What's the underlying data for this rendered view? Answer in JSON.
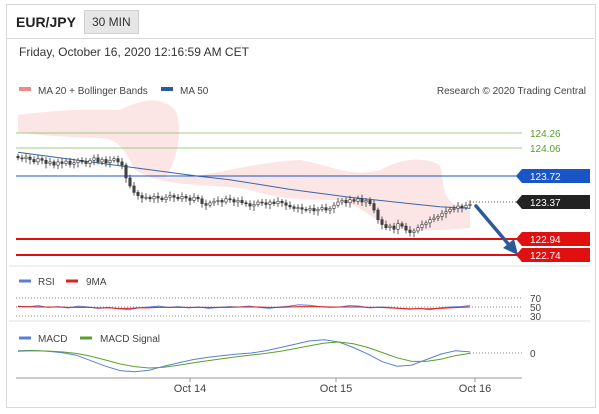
{
  "header": {
    "symbol": "EUR/JPY",
    "timeframe": "30 MIN"
  },
  "datetime": "Friday, October 16, 2020 12:16:59 AM CET",
  "copyright": "Research © 2020 Trading Central",
  "colors": {
    "bollinger": "#f07070",
    "ma50": "#2a5a9a",
    "resistance": "#6ab04c",
    "pivot": "#1a55c8",
    "support": "#e01010",
    "arrow": "#2a5a9a",
    "rsi": "#5b7fd6",
    "rsi9": "#e02020",
    "macd": "#5b7fd6",
    "macd_signal": "#5aa02c"
  },
  "icons": [
    "down-arrow-icon"
  ],
  "chart_data": [
    {
      "type": "line",
      "panel": "price",
      "legend": [
        "MA 20 + Bollinger Bands",
        "MA 50"
      ],
      "x_ticks": [
        "Oct 14",
        "Oct 15",
        "Oct 16"
      ],
      "ylim": [
        122.65,
        124.45
      ],
      "candles_close": [
        123.95,
        123.94,
        123.96,
        123.93,
        123.9,
        123.94,
        123.92,
        123.88,
        123.9,
        123.86,
        123.9,
        123.88,
        123.91,
        123.87,
        123.89,
        123.92,
        123.9,
        123.88,
        123.92,
        123.95,
        123.9,
        123.93,
        123.89,
        123.92,
        123.94,
        123.9,
        123.86,
        123.7,
        123.6,
        123.52,
        123.48,
        123.45,
        123.46,
        123.44,
        123.47,
        123.45,
        123.43,
        123.46,
        123.48,
        123.46,
        123.44,
        123.47,
        123.45,
        123.42,
        123.46,
        123.44,
        123.38,
        123.36,
        123.39,
        123.41,
        123.42,
        123.4,
        123.44,
        123.43,
        123.4,
        123.42,
        123.39,
        123.38,
        123.35,
        123.37,
        123.4,
        123.39,
        123.37,
        123.4,
        123.38,
        123.41,
        123.39,
        123.36,
        123.34,
        123.32,
        123.33,
        123.31,
        123.3,
        123.32,
        123.29,
        123.31,
        123.33,
        123.3,
        123.32,
        123.36,
        123.4,
        123.42,
        123.39,
        123.43,
        123.41,
        123.44,
        123.4,
        123.42,
        123.38,
        123.3,
        123.18,
        123.12,
        123.08,
        123.1,
        123.06,
        123.13,
        123.1,
        123.05,
        123.02,
        123.04,
        123.08,
        123.12,
        123.14,
        123.18,
        123.2,
        123.22,
        123.26,
        123.28,
        123.31,
        123.32,
        123.35,
        123.33,
        123.36,
        123.37
      ],
      "series": [
        {
          "name": "MA 50",
          "values": [
            124.02,
            123.97,
            123.92,
            123.87,
            123.82,
            123.77,
            123.72,
            123.68,
            123.62,
            123.56,
            123.51,
            123.46,
            123.42,
            123.38,
            123.34,
            123.32
          ]
        }
      ],
      "levels": [
        {
          "value": 124.26,
          "label": "124.26",
          "kind": "resistance"
        },
        {
          "value": 124.06,
          "label": "124.06",
          "kind": "resistance"
        },
        {
          "value": 123.72,
          "label": "123.72",
          "kind": "pivot"
        },
        {
          "value": 123.37,
          "label": "123.37",
          "kind": "last"
        },
        {
          "value": 122.94,
          "label": "122.94",
          "kind": "support"
        },
        {
          "value": 122.74,
          "label": "122.74",
          "kind": "support"
        }
      ]
    },
    {
      "type": "line",
      "panel": "rsi",
      "legend": [
        "RSI",
        "9MA"
      ],
      "levels": [
        "70",
        "50",
        "30"
      ],
      "ylim": [
        30,
        70
      ],
      "series": [
        {
          "name": "RSI",
          "values": [
            52,
            50,
            53,
            49,
            51,
            48,
            52,
            50,
            47,
            49,
            46,
            44,
            48,
            50,
            52,
            49,
            51,
            48,
            50,
            47,
            49,
            51,
            50,
            52,
            49,
            47,
            50,
            52,
            55,
            54,
            51,
            49,
            50,
            53,
            52,
            48,
            50,
            49,
            47,
            45,
            47,
            44,
            48,
            50,
            51,
            53
          ]
        },
        {
          "name": "9MA",
          "values": [
            51,
            51,
            50,
            50,
            50,
            49,
            49,
            49,
            48,
            48,
            47,
            47,
            48,
            48,
            49,
            49,
            49,
            49,
            49,
            49,
            49,
            49,
            50,
            50,
            50,
            49,
            49,
            50,
            51,
            51,
            51,
            50,
            50,
            50,
            50,
            49,
            49,
            48,
            47,
            46,
            46,
            46,
            47,
            48,
            49,
            50
          ]
        }
      ]
    },
    {
      "type": "line",
      "panel": "macd",
      "legend": [
        "MACD",
        "MACD Signal"
      ],
      "levels": [
        "0"
      ],
      "ylim": [
        -1,
        1
      ],
      "series": [
        {
          "name": "MACD",
          "values": [
            0.1,
            0.12,
            0.08,
            0.02,
            -0.1,
            -0.35,
            -0.6,
            -0.8,
            -0.85,
            -0.78,
            -0.6,
            -0.45,
            -0.3,
            -0.2,
            -0.12,
            -0.05,
            0.0,
            0.1,
            0.25,
            0.4,
            0.55,
            0.6,
            0.5,
            0.25,
            -0.05,
            -0.4,
            -0.6,
            -0.55,
            -0.3,
            -0.05,
            0.1,
            0.05
          ]
        },
        {
          "name": "MACD Signal",
          "values": [
            0.08,
            0.1,
            0.09,
            0.05,
            -0.02,
            -0.15,
            -0.32,
            -0.5,
            -0.62,
            -0.68,
            -0.65,
            -0.56,
            -0.45,
            -0.35,
            -0.26,
            -0.17,
            -0.09,
            -0.02,
            0.08,
            0.2,
            0.33,
            0.45,
            0.5,
            0.42,
            0.25,
            0.02,
            -0.22,
            -0.38,
            -0.38,
            -0.28,
            -0.12,
            -0.02
          ]
        }
      ]
    }
  ]
}
